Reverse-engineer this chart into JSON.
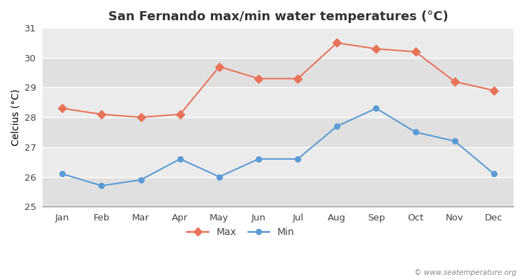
{
  "title": "San Fernando max/min water temperatures (°C)",
  "ylabel": "Celcius (°C)",
  "months": [
    "Jan",
    "Feb",
    "Mar",
    "Apr",
    "May",
    "Jun",
    "Jul",
    "Aug",
    "Sep",
    "Oct",
    "Nov",
    "Dec"
  ],
  "max_temps": [
    28.3,
    28.1,
    28.0,
    28.1,
    29.7,
    29.3,
    29.3,
    30.5,
    30.3,
    30.2,
    29.2,
    28.9
  ],
  "min_temps": [
    26.1,
    25.7,
    25.9,
    26.6,
    26.0,
    26.6,
    26.6,
    27.7,
    28.3,
    27.5,
    27.2,
    26.1
  ],
  "ylim": [
    25,
    31
  ],
  "yticks": [
    25,
    26,
    27,
    28,
    29,
    30,
    31
  ],
  "max_color": "#e8735a",
  "min_color": "#5b9bd5",
  "fig_bg_color": "#ffffff",
  "plot_bg_color": "#ebebeb",
  "band_colors": [
    "#e0e0e0",
    "#ebebeb"
  ],
  "grid_color": "#ffffff",
  "watermark": "© www.seatemperature.org",
  "title_fontsize": 13,
  "label_fontsize": 10,
  "tick_fontsize": 9.5,
  "legend_fontsize": 10
}
